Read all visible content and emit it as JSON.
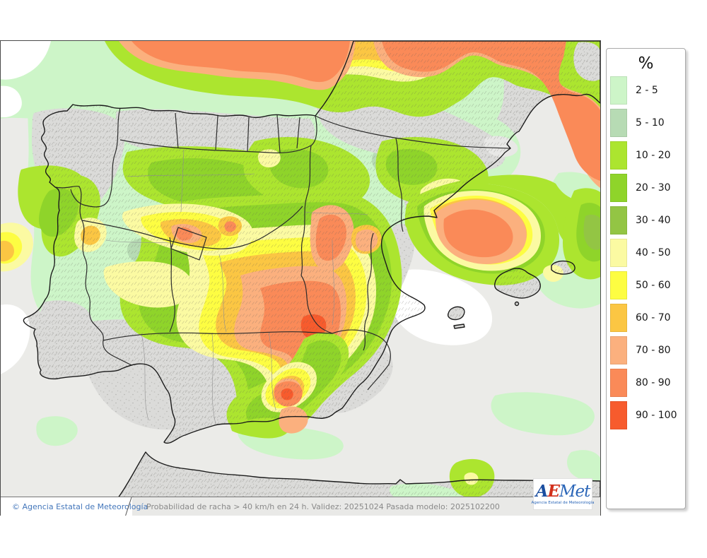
{
  "footer": {
    "copyright": "© Agencia Estatal de Meteorología",
    "caption": "Probabilidad de racha > 40 km/h en 24 h. Validez: 20251024 Pasada modelo: 2025102200"
  },
  "legend": {
    "title": "%",
    "items": [
      {
        "label": "2 - 5",
        "color": "#CDF5C8"
      },
      {
        "label": "5 - 10",
        "color": "#B7DBB4"
      },
      {
        "label": "10 - 20",
        "color": "#ACE52F"
      },
      {
        "label": "20 - 30",
        "color": "#8FD42A"
      },
      {
        "label": "30 - 40",
        "color": "#93C544"
      },
      {
        "label": "40 - 50",
        "color": "#FBFAA2"
      },
      {
        "label": "50 - 60",
        "color": "#FDFD42"
      },
      {
        "label": "60 - 70",
        "color": "#FBC643"
      },
      {
        "label": "70 - 80",
        "color": "#FBB07E"
      },
      {
        "label": "80 - 90",
        "color": "#FA8A58"
      },
      {
        "label": "90 - 100",
        "color": "#F75B2D"
      }
    ]
  },
  "logo": {
    "letter_a": "A",
    "letter_e": "E",
    "letter_met": "Met",
    "subtitle": "Agencia Estatal de Meteorología"
  },
  "palette": {
    "sea": "#EBEBE8",
    "white_zone": "#FFFFFF",
    "p2": "#CDF5C8",
    "p5": "#B7DBB4",
    "p10": "#ACE52F",
    "p20": "#8FD42A",
    "p30": "#93C544",
    "p40": "#FBFAA2",
    "p50": "#FDFD42",
    "p60": "#FBC643",
    "p70": "#FBB07E",
    "p80": "#FA8A58",
    "p90": "#F75B2D"
  }
}
